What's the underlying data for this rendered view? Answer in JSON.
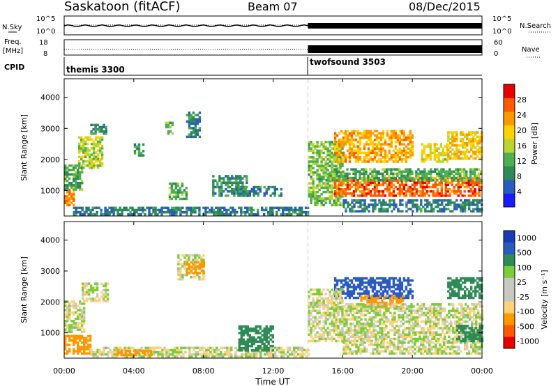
{
  "header": {
    "site": "Saskatoon (fitACF)",
    "beam": "Beam 07",
    "date": "08/Dec/2015"
  },
  "mini_panels": {
    "nsky_label": "N.Sky",
    "nsky_ticks": [
      "10^5",
      "10^0"
    ],
    "nsearch_label": "N.Search",
    "nsearch_ticks": [
      "10^5",
      "10^0"
    ],
    "freq_label": "Freq.",
    "freq_unit": "[MHz]",
    "freq_ticks": [
      "18",
      "8"
    ],
    "nave_label": "Nave",
    "nave_ticks": [
      "60",
      "0"
    ],
    "cpid_label": "CPID",
    "cpid_modes": [
      "themis 3300",
      "twofsound 3503"
    ]
  },
  "colors": {
    "power_scale": [
      "#1a1aff",
      "#2a5cc0",
      "#2e8b57",
      "#4caf50",
      "#b8d62e",
      "#ffd200",
      "#ff9800",
      "#ff5a00",
      "#e60000"
    ],
    "velocity_scale": [
      "#e60000",
      "#ff5a00",
      "#ff9800",
      "#ffd27a",
      "#c8c8c0",
      "#c8c8c0",
      "#7ccd3c",
      "#2e8b57",
      "#2a5cc0",
      "#1a3cb0"
    ]
  },
  "chart_data": [
    {
      "type": "heatmap",
      "title": "",
      "ylabel": "Slant Range [km]",
      "xlabel": "",
      "x_ticks": [
        "00:00",
        "04:00",
        "08:00",
        "12:00",
        "16:00",
        "20:00",
        "00:00"
      ],
      "y_ticks": [
        "1000",
        "2000",
        "3000",
        "4000"
      ],
      "ylim": [
        180,
        4600
      ],
      "xlim_hours": [
        0,
        24
      ],
      "mode_change_hour": 14,
      "colorbar": {
        "label": "Power [dB]",
        "ticks": [
          "4",
          "8",
          "12",
          "16",
          "20",
          "24",
          "28"
        ],
        "range": [
          0,
          32
        ]
      },
      "regions": [
        {
          "t0": 0.0,
          "t1": 0.5,
          "r0": 500,
          "r1": 1100,
          "value": 24
        },
        {
          "t0": 0.0,
          "t1": 1.0,
          "r0": 1000,
          "r1": 1800,
          "value": 12
        },
        {
          "t0": 0.8,
          "t1": 2.2,
          "r0": 1700,
          "r1": 2700,
          "value": 16
        },
        {
          "t0": 1.5,
          "t1": 2.4,
          "r0": 2800,
          "r1": 3100,
          "value": 10
        },
        {
          "t0": 0.5,
          "t1": 14.0,
          "r0": 200,
          "r1": 450,
          "value": 8
        },
        {
          "t0": 4.0,
          "t1": 4.6,
          "r0": 2100,
          "r1": 2500,
          "value": 10
        },
        {
          "t0": 5.8,
          "t1": 6.2,
          "r0": 2800,
          "r1": 3200,
          "value": 14
        },
        {
          "t0": 7.0,
          "t1": 7.8,
          "r0": 2700,
          "r1": 3500,
          "value": 8
        },
        {
          "t0": 6.0,
          "t1": 7.0,
          "r0": 700,
          "r1": 1200,
          "value": 12
        },
        {
          "t0": 8.5,
          "t1": 10.5,
          "r0": 800,
          "r1": 1500,
          "value": 10
        },
        {
          "t0": 10.0,
          "t1": 12.5,
          "r0": 800,
          "r1": 1100,
          "value": 8
        },
        {
          "t0": 14.0,
          "t1": 16.0,
          "r0": 500,
          "r1": 2600,
          "value": 14
        },
        {
          "t0": 15.5,
          "t1": 20.0,
          "r0": 1900,
          "r1": 2900,
          "value": 22
        },
        {
          "t0": 20.5,
          "t1": 22.0,
          "r0": 1900,
          "r1": 2500,
          "value": 18
        },
        {
          "t0": 22.0,
          "t1": 24.0,
          "r0": 2000,
          "r1": 2900,
          "value": 20
        },
        {
          "t0": 15.5,
          "t1": 24.0,
          "r0": 800,
          "r1": 1400,
          "value": 26
        },
        {
          "t0": 15.0,
          "t1": 24.0,
          "r0": 1300,
          "r1": 1700,
          "value": 12
        },
        {
          "t0": 16.0,
          "t1": 24.0,
          "r0": 300,
          "r1": 700,
          "value": 8
        }
      ]
    },
    {
      "type": "heatmap",
      "title": "",
      "ylabel": "Slant Range [km]",
      "xlabel": "Time UT",
      "x_ticks": [
        "00:00",
        "04:00",
        "08:00",
        "12:00",
        "16:00",
        "20:00",
        "00:00"
      ],
      "y_ticks": [
        "1000",
        "2000",
        "3000",
        "4000"
      ],
      "ylim": [
        180,
        4600
      ],
      "xlim_hours": [
        0,
        24
      ],
      "mode_change_hour": 14,
      "colorbar": {
        "label": "Velocity [m s⁻¹]",
        "ticks": [
          "1000",
          "500",
          "100",
          "25",
          "-25",
          "-100",
          "-500",
          "-1000"
        ],
        "range": [
          -1000,
          1000
        ]
      },
      "regions": [
        {
          "t0": 0.0,
          "t1": 1.2,
          "r0": 1000,
          "r1": 2000,
          "value": 0
        },
        {
          "t0": 0.0,
          "t1": 1.5,
          "r0": 300,
          "r1": 900,
          "value": -300
        },
        {
          "t0": 1.0,
          "t1": 2.5,
          "r0": 2000,
          "r1": 2600,
          "value": 0
        },
        {
          "t0": 1.5,
          "t1": 14.0,
          "r0": 200,
          "r1": 500,
          "value": 0
        },
        {
          "t0": 3.0,
          "t1": 5.0,
          "r0": 250,
          "r1": 450,
          "value": -300
        },
        {
          "t0": 6.5,
          "t1": 8.0,
          "r0": 2700,
          "r1": 3500,
          "value": 0
        },
        {
          "t0": 7.0,
          "t1": 8.0,
          "r0": 2900,
          "r1": 3300,
          "value": -300
        },
        {
          "t0": 10.0,
          "t1": 12.0,
          "r0": 400,
          "r1": 1200,
          "value": 200
        },
        {
          "t0": 15.5,
          "t1": 20.0,
          "r0": 2100,
          "r1": 2800,
          "value": 700
        },
        {
          "t0": 17.0,
          "t1": 19.5,
          "r0": 1800,
          "r1": 2200,
          "value": -400
        },
        {
          "t0": 22.0,
          "t1": 24.0,
          "r0": 2100,
          "r1": 2800,
          "value": 300
        },
        {
          "t0": 14.0,
          "t1": 24.0,
          "r0": 700,
          "r1": 1900,
          "value": 0
        },
        {
          "t0": 14.0,
          "t1": 16.0,
          "r0": 1800,
          "r1": 2400,
          "value": 0
        },
        {
          "t0": 16.0,
          "t1": 24.0,
          "r0": 300,
          "r1": 700,
          "value": 0
        },
        {
          "t0": 22.5,
          "t1": 24.0,
          "r0": 700,
          "r1": 1200,
          "value": 200
        }
      ]
    }
  ]
}
